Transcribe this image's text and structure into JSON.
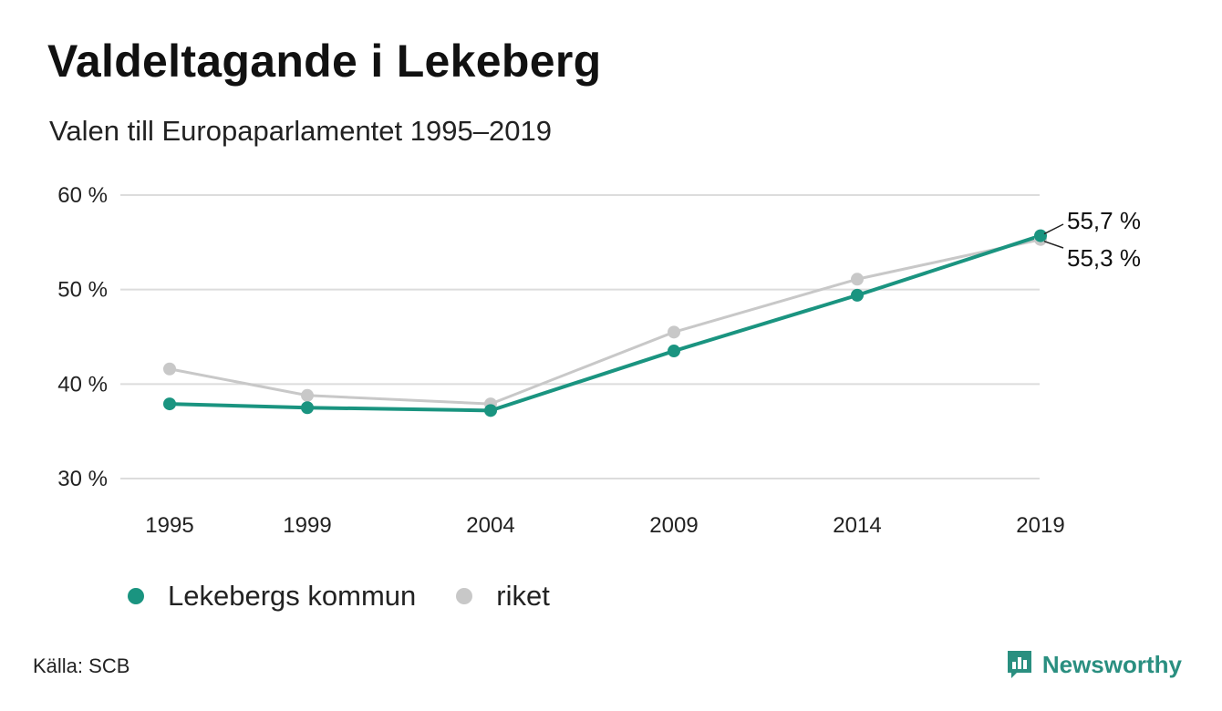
{
  "title": "Valdeltagande i Lekeberg",
  "subtitle": "Valen till Europaparlamentet 1995–2019",
  "source": "Källa: SCB",
  "brand": {
    "name": "Newsworthy",
    "icon": "newsworthy-logo-icon",
    "color": "#2a8f80"
  },
  "chart_data": {
    "type": "line",
    "title": "Valdeltagande i Lekeberg",
    "subtitle": "Valen till Europaparlamentet 1995–2019",
    "x": [
      "1995",
      "1999",
      "2004",
      "2009",
      "2014",
      "2019"
    ],
    "y_ticks": [
      "30 %",
      "40 %",
      "50 %",
      "60 %"
    ],
    "ylim": [
      30,
      60
    ],
    "grid": true,
    "legend_position": "bottom",
    "series": [
      {
        "name": "riket",
        "color": "#c8c8c8",
        "values": [
          41.6,
          38.8,
          37.9,
          45.5,
          51.1,
          55.3
        ],
        "end_label": "55,3 %"
      },
      {
        "name": "Lekebergs kommun",
        "color": "#1a9480",
        "values": [
          37.9,
          37.5,
          37.2,
          43.5,
          49.4,
          55.7
        ],
        "end_label": "55,7 %"
      }
    ]
  }
}
